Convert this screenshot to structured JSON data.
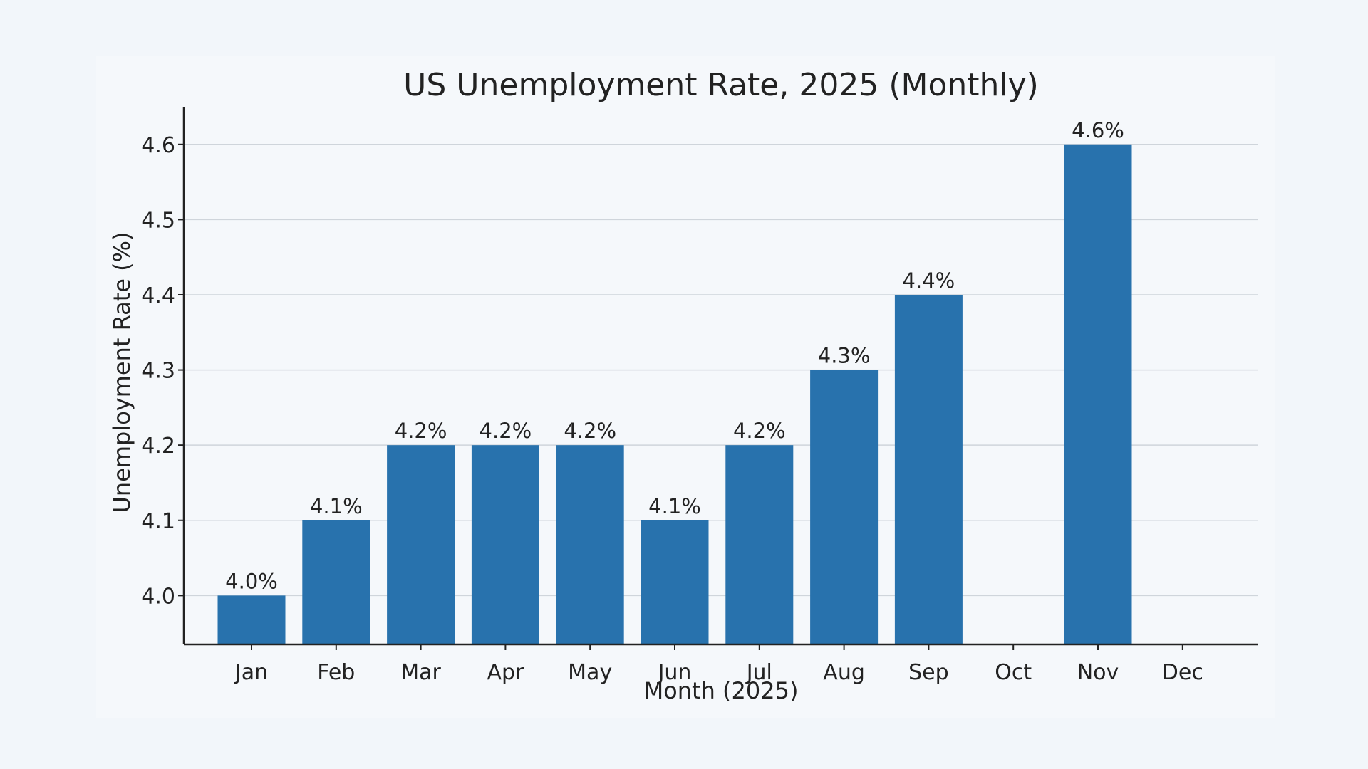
{
  "chart_data": {
    "type": "bar",
    "title": "US Unemployment Rate, 2025 (Monthly)",
    "xlabel": "Month (2025)",
    "ylabel": "Unemployment Rate (%)",
    "categories": [
      "Jan",
      "Feb",
      "Mar",
      "Apr",
      "May",
      "Jun",
      "Jul",
      "Aug",
      "Sep",
      "Oct",
      "Nov",
      "Dec"
    ],
    "values": [
      4.0,
      4.1,
      4.2,
      4.2,
      4.2,
      4.1,
      4.2,
      4.3,
      4.4,
      null,
      4.6,
      null
    ],
    "data_labels": [
      "4.0%",
      "4.1%",
      "4.2%",
      "4.2%",
      "4.2%",
      "4.1%",
      "4.2%",
      "4.3%",
      "4.4%",
      "",
      "4.6%",
      ""
    ],
    "yticks": [
      4.0,
      4.1,
      4.2,
      4.3,
      4.4,
      4.5,
      4.6
    ],
    "ytick_labels": [
      "4.0",
      "4.1",
      "4.2",
      "4.3",
      "4.4",
      "4.5",
      "4.6"
    ],
    "ylim": [
      3.935,
      4.65
    ],
    "grid": "horizontal",
    "bar_color": "#2872ad"
  }
}
